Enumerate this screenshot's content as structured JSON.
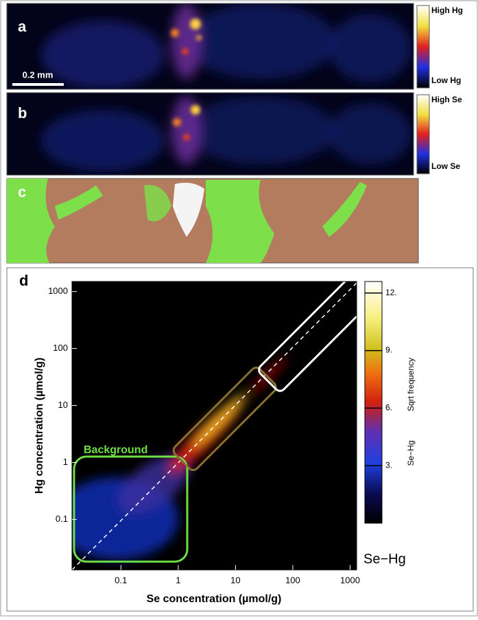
{
  "panels": [
    {
      "label": "a",
      "scale_bar": "0.2 mm",
      "colorbar_high": "High Hg",
      "colorbar_low": "Low Hg"
    },
    {
      "label": "b",
      "colorbar_high": "High Se",
      "colorbar_low": "Low Se"
    },
    {
      "label": "c"
    }
  ],
  "chart_data": {
    "type": "histogram2d",
    "panel_label": "d",
    "xlabel": "Se concentration (µmol/g)",
    "ylabel": "Hg concentration (µmol/g)",
    "xscale": "log",
    "yscale": "log",
    "xlim": [
      0.014,
      1300
    ],
    "xticks": [
      0.1,
      1,
      10,
      100,
      1000
    ],
    "ylim": [
      0.013,
      1500
    ],
    "yticks": [
      0.1,
      1,
      10,
      100,
      1000
    ],
    "colorbar": {
      "label": "Sqrt frequency",
      "title": "Se−Hg",
      "clim": [
        0,
        12.6
      ],
      "ticks": [
        {
          "value": 3,
          "label": "3."
        },
        {
          "value": 6,
          "label": "6."
        },
        {
          "value": 9,
          "label": "9."
        },
        {
          "value": 12,
          "label": "12."
        }
      ]
    },
    "annotation": "Background",
    "plot_label": "Se−Hg"
  }
}
